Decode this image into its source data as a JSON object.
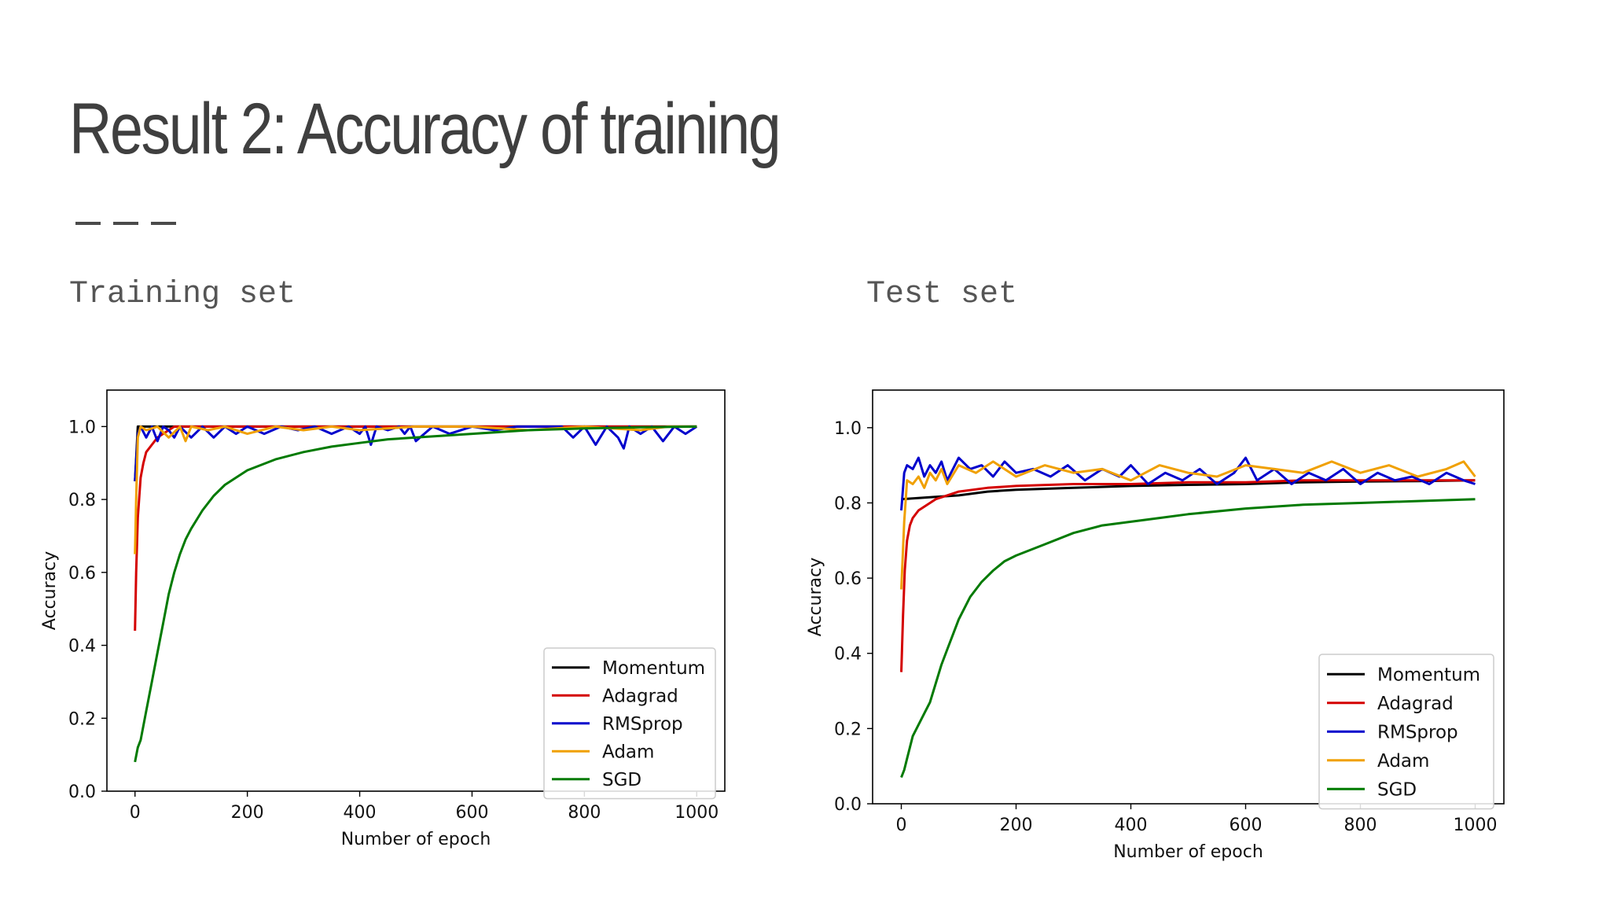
{
  "slide": {
    "title": "Result 2: Accuracy of training",
    "subtitle_left": "Training set",
    "subtitle_right": "Test set"
  },
  "colors": {
    "Momentum": "#000000",
    "Adagrad": "#d40000",
    "RMSprop": "#0000cc",
    "Adam": "#f0a000",
    "SGD": "#007a00"
  },
  "chart_data": [
    {
      "type": "line",
      "panel": "Training set",
      "title": "",
      "xlabel": "Number of epoch",
      "ylabel": "Accuracy",
      "xlim": [
        -50,
        1050
      ],
      "ylim": [
        0.0,
        1.1
      ],
      "xticks": [
        0,
        200,
        400,
        600,
        800,
        1000
      ],
      "yticks": [
        0.0,
        0.2,
        0.4,
        0.6,
        0.8,
        1.0
      ],
      "grid": false,
      "legend": "lower right",
      "series": [
        {
          "name": "Momentum",
          "x": [
            0,
            5,
            1000
          ],
          "y": [
            0.85,
            1.0,
            1.0
          ]
        },
        {
          "name": "Adagrad",
          "x": [
            0,
            2,
            5,
            10,
            15,
            20,
            30,
            40,
            50,
            60,
            70,
            1000
          ],
          "y": [
            0.44,
            0.6,
            0.75,
            0.86,
            0.9,
            0.93,
            0.95,
            0.97,
            0.98,
            0.99,
            1.0,
            1.0
          ]
        },
        {
          "name": "RMSprop",
          "x": [
            0,
            5,
            10,
            20,
            30,
            40,
            50,
            60,
            70,
            80,
            100,
            120,
            140,
            160,
            180,
            200,
            230,
            260,
            290,
            320,
            350,
            380,
            400,
            410,
            420,
            430,
            450,
            470,
            480,
            490,
            500,
            530,
            560,
            600,
            640,
            680,
            720,
            760,
            780,
            800,
            820,
            840,
            860,
            870,
            880,
            900,
            920,
            940,
            960,
            980,
            1000
          ],
          "y": [
            0.85,
            0.98,
            1.0,
            0.97,
            1.0,
            0.96,
            1.0,
            0.99,
            0.97,
            1.0,
            0.97,
            1.0,
            0.97,
            1.0,
            0.98,
            1.0,
            0.98,
            1.0,
            0.99,
            1.0,
            0.98,
            1.0,
            0.98,
            1.0,
            0.95,
            1.0,
            0.99,
            1.0,
            0.98,
            1.0,
            0.96,
            1.0,
            0.98,
            1.0,
            0.99,
            1.0,
            1.0,
            1.0,
            0.97,
            1.0,
            0.95,
            1.0,
            0.97,
            0.94,
            1.0,
            0.98,
            1.0,
            0.96,
            1.0,
            0.98,
            1.0
          ]
        },
        {
          "name": "Adam",
          "x": [
            0,
            2,
            5,
            10,
            20,
            40,
            60,
            80,
            90,
            100,
            130,
            160,
            200,
            250,
            300,
            350,
            400,
            500,
            600,
            700,
            800,
            900,
            950,
            1000
          ],
          "y": [
            0.65,
            0.8,
            0.97,
            1.0,
            0.99,
            1.0,
            0.97,
            1.0,
            0.96,
            1.0,
            0.99,
            1.0,
            0.98,
            1.0,
            0.99,
            1.0,
            0.99,
            1.0,
            1.0,
            0.99,
            1.0,
            0.99,
            1.0,
            1.0
          ]
        },
        {
          "name": "SGD",
          "x": [
            0,
            5,
            10,
            20,
            30,
            40,
            50,
            60,
            70,
            80,
            90,
            100,
            120,
            140,
            160,
            180,
            200,
            250,
            300,
            350,
            400,
            450,
            500,
            600,
            700,
            800,
            900,
            1000
          ],
          "y": [
            0.08,
            0.12,
            0.14,
            0.22,
            0.3,
            0.38,
            0.46,
            0.54,
            0.6,
            0.65,
            0.69,
            0.72,
            0.77,
            0.81,
            0.84,
            0.86,
            0.88,
            0.91,
            0.93,
            0.945,
            0.955,
            0.965,
            0.97,
            0.98,
            0.99,
            0.995,
            0.998,
            1.0
          ]
        }
      ]
    },
    {
      "type": "line",
      "panel": "Test set",
      "title": "",
      "xlabel": "Number of epoch",
      "ylabel": "Accuracy",
      "xlim": [
        -50,
        1050
      ],
      "ylim": [
        0.0,
        1.1
      ],
      "xticks": [
        0,
        200,
        400,
        600,
        800,
        1000
      ],
      "yticks": [
        0.0,
        0.2,
        0.4,
        0.6,
        0.8,
        1.0
      ],
      "grid": false,
      "legend": "lower right",
      "series": [
        {
          "name": "Momentum",
          "x": [
            0,
            50,
            100,
            150,
            200,
            300,
            400,
            500,
            600,
            700,
            800,
            900,
            1000
          ],
          "y": [
            0.81,
            0.815,
            0.82,
            0.83,
            0.835,
            0.84,
            0.845,
            0.848,
            0.85,
            0.855,
            0.857,
            0.858,
            0.86
          ]
        },
        {
          "name": "Adagrad",
          "x": [
            0,
            3,
            6,
            10,
            15,
            20,
            30,
            40,
            50,
            60,
            80,
            100,
            150,
            200,
            300,
            400,
            500,
            600,
            700,
            800,
            900,
            1000
          ],
          "y": [
            0.35,
            0.5,
            0.62,
            0.7,
            0.74,
            0.76,
            0.78,
            0.79,
            0.8,
            0.81,
            0.82,
            0.83,
            0.84,
            0.845,
            0.85,
            0.85,
            0.855,
            0.855,
            0.86,
            0.86,
            0.86,
            0.86
          ]
        },
        {
          "name": "RMSprop",
          "x": [
            0,
            5,
            10,
            20,
            30,
            40,
            50,
            60,
            70,
            80,
            100,
            120,
            140,
            160,
            180,
            200,
            230,
            260,
            290,
            320,
            350,
            380,
            400,
            430,
            460,
            490,
            520,
            550,
            580,
            600,
            620,
            650,
            680,
            710,
            740,
            770,
            800,
            830,
            860,
            890,
            920,
            950,
            980,
            1000
          ],
          "y": [
            0.78,
            0.88,
            0.9,
            0.89,
            0.92,
            0.87,
            0.9,
            0.88,
            0.91,
            0.86,
            0.92,
            0.89,
            0.9,
            0.87,
            0.91,
            0.88,
            0.89,
            0.87,
            0.9,
            0.86,
            0.89,
            0.87,
            0.9,
            0.85,
            0.88,
            0.86,
            0.89,
            0.85,
            0.88,
            0.92,
            0.86,
            0.89,
            0.85,
            0.88,
            0.86,
            0.89,
            0.85,
            0.88,
            0.86,
            0.87,
            0.85,
            0.88,
            0.86,
            0.85
          ]
        },
        {
          "name": "Adam",
          "x": [
            0,
            5,
            10,
            20,
            30,
            40,
            50,
            60,
            70,
            80,
            100,
            130,
            160,
            200,
            250,
            300,
            350,
            400,
            450,
            500,
            550,
            600,
            650,
            700,
            750,
            800,
            850,
            900,
            950,
            980,
            1000
          ],
          "y": [
            0.57,
            0.75,
            0.86,
            0.85,
            0.87,
            0.84,
            0.88,
            0.86,
            0.89,
            0.85,
            0.9,
            0.88,
            0.91,
            0.87,
            0.9,
            0.88,
            0.89,
            0.86,
            0.9,
            0.88,
            0.87,
            0.9,
            0.89,
            0.88,
            0.91,
            0.88,
            0.9,
            0.87,
            0.89,
            0.91,
            0.87
          ]
        },
        {
          "name": "SGD",
          "x": [
            0,
            5,
            10,
            20,
            30,
            40,
            50,
            60,
            70,
            80,
            90,
            100,
            120,
            140,
            160,
            180,
            200,
            250,
            300,
            350,
            400,
            450,
            500,
            600,
            700,
            800,
            900,
            1000
          ],
          "y": [
            0.07,
            0.09,
            0.12,
            0.18,
            0.21,
            0.24,
            0.27,
            0.32,
            0.37,
            0.41,
            0.45,
            0.49,
            0.55,
            0.59,
            0.62,
            0.645,
            0.66,
            0.69,
            0.72,
            0.74,
            0.75,
            0.76,
            0.77,
            0.785,
            0.795,
            0.8,
            0.805,
            0.81
          ]
        }
      ]
    }
  ]
}
